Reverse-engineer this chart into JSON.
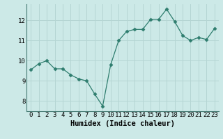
{
  "x": [
    0,
    1,
    2,
    3,
    4,
    5,
    6,
    7,
    8,
    9,
    10,
    11,
    12,
    13,
    14,
    15,
    16,
    17,
    18,
    19,
    20,
    21,
    22,
    23
  ],
  "y": [
    9.55,
    9.85,
    10.0,
    9.6,
    9.6,
    9.3,
    9.1,
    9.0,
    8.35,
    7.75,
    9.8,
    11.0,
    11.45,
    11.55,
    11.55,
    12.05,
    12.05,
    12.55,
    11.95,
    11.25,
    11.0,
    11.15,
    11.05,
    11.6
  ],
  "line_color": "#2e7d6e",
  "marker": "D",
  "marker_size": 2.5,
  "bg_color": "#cce9e7",
  "grid_color": "#b5d5d3",
  "xlabel": "Humidex (Indice chaleur)",
  "ylim": [
    7.5,
    12.8
  ],
  "xlim": [
    -0.5,
    23.5
  ],
  "yticks": [
    8,
    9,
    10,
    11,
    12
  ],
  "xticks": [
    0,
    1,
    2,
    3,
    4,
    5,
    6,
    7,
    8,
    9,
    10,
    11,
    12,
    13,
    14,
    15,
    16,
    17,
    18,
    19,
    20,
    21,
    22,
    23
  ],
  "xlabel_fontsize": 7.5,
  "tick_fontsize": 6.5
}
